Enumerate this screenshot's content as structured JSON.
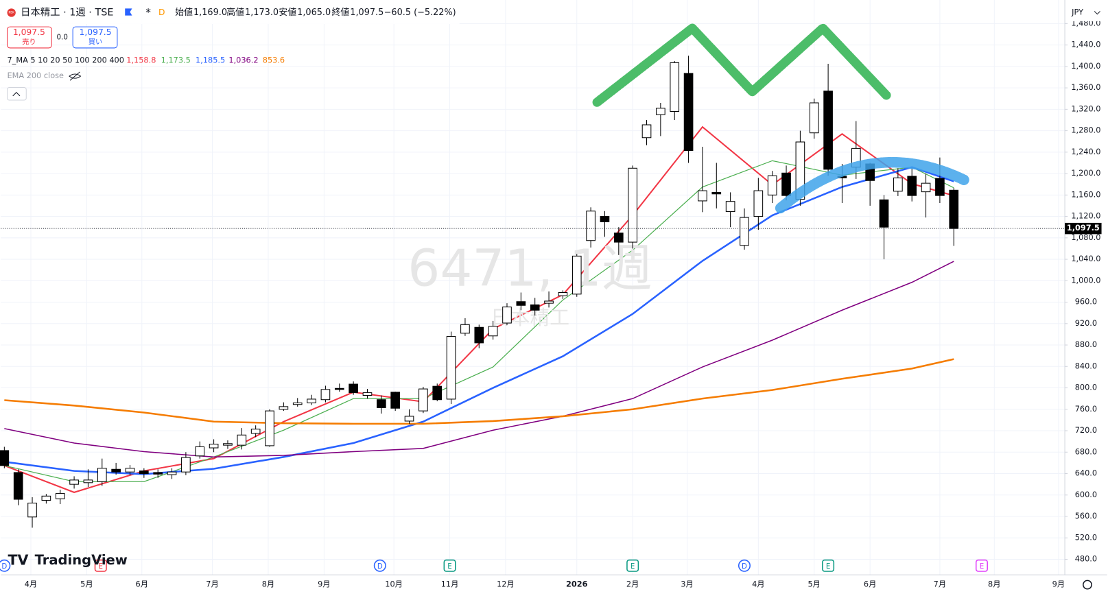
{
  "header": {
    "logo": "NSK",
    "symbol": "日本精工 · 1週 · TSE",
    "interval_badge": "D",
    "ohlc": [
      {
        "label": "始値",
        "value": "1,169.0"
      },
      {
        "label": "高値",
        "value": "1,173.0"
      },
      {
        "label": "安値",
        "value": "1,065.0"
      },
      {
        "label": "終値",
        "value": "1,097.5"
      }
    ],
    "change": "−60.5 (−5.22%)",
    "sell": {
      "price": "1,097.5",
      "label": "売り"
    },
    "spread": "0.0",
    "buy": {
      "price": "1,097.5",
      "label": "買い"
    },
    "ma_label": "7_MA 5 10 20 50 100 200 400",
    "ema_label": "EMA 200 close",
    "watermark": "6471, 1週",
    "watermark_sub": "日本精工",
    "currency": "JPY",
    "brand": "TradingView"
  },
  "chart_data": {
    "type": "candlestick",
    "candles": {
      "open": [
        683,
        642,
        559,
        590,
        593,
        620,
        623,
        625,
        648,
        643,
        645,
        642,
        638,
        643,
        673,
        688,
        693,
        693,
        715,
        692,
        760,
        769,
        772,
        778,
        799,
        807,
        786,
        778,
        792,
        738,
        757,
        803,
        779,
        902,
        913,
        897,
        921,
        961,
        955,
        958,
        972,
        975,
        1075,
        1120,
        1089,
        1072,
        1267,
        1310,
        1316,
        1387,
        1149,
        1165,
        1129,
        1066,
        1120,
        1160,
        1201,
        1152,
        1276,
        1354,
        1195,
        1212,
        1218,
        1151,
        1167,
        1195,
        1166,
        1191,
        1169
      ],
      "high": [
        690,
        648,
        596,
        602,
        610,
        635,
        648,
        668,
        660,
        656,
        650,
        648,
        650,
        680,
        700,
        704,
        702,
        725,
        730,
        760,
        773,
        781,
        787,
        804,
        808,
        812,
        798,
        786,
        793,
        760,
        802,
        808,
        905,
        930,
        918,
        925,
        958,
        978,
        968,
        980,
        982,
        1050,
        1137,
        1130,
        1100,
        1215,
        1300,
        1332,
        1410,
        1420,
        1250,
        1220,
        1165,
        1135,
        1192,
        1205,
        1215,
        1280,
        1340,
        1405,
        1218,
        1298,
        1220,
        1160,
        1210,
        1210,
        1200,
        1230,
        1173
      ],
      "low": [
        650,
        581,
        539,
        584,
        583,
        612,
        615,
        617,
        638,
        637,
        632,
        632,
        630,
        637,
        668,
        680,
        686,
        685,
        708,
        690,
        757,
        765,
        768,
        773,
        793,
        787,
        780,
        752,
        757,
        733,
        753,
        775,
        770,
        897,
        874,
        890,
        917,
        945,
        935,
        950,
        966,
        970,
        1062,
        1082,
        1048,
        1060,
        1253,
        1270,
        1300,
        1220,
        1128,
        1135,
        1100,
        1058,
        1095,
        1145,
        1150,
        1140,
        1265,
        1196,
        1145,
        1190,
        1140,
        1040,
        1158,
        1148,
        1118,
        1145,
        1065
      ],
      "close": [
        655,
        592,
        585,
        598,
        603,
        628,
        628,
        650,
        643,
        650,
        640,
        639,
        643,
        670,
        690,
        695,
        696,
        712,
        723,
        757,
        765,
        772,
        779,
        797,
        797,
        791,
        791,
        763,
        762,
        747,
        798,
        778,
        896,
        918,
        884,
        915,
        951,
        954,
        945,
        962,
        978,
        1046,
        1130,
        1110,
        1072,
        1210,
        1291,
        1322,
        1407,
        1243,
        1168,
        1162,
        1148,
        1118,
        1168,
        1196,
        1159,
        1259,
        1332,
        1208,
        1192,
        1247,
        1187,
        1100,
        1192,
        1159,
        1182,
        1159,
        1097.5
      ]
    },
    "up_color": "#ffffff",
    "down_color": "#000000",
    "series": [
      {
        "color": "#f23645",
        "x": [
          0,
          5,
          10,
          15,
          20,
          25,
          30,
          35,
          40,
          45,
          50,
          55,
          60,
          65,
          68
        ],
        "values": [
          655,
          605,
          645,
          668,
          737,
          792,
          774,
          910,
          974,
          1122,
          1287,
          1179,
          1274,
          1181,
          1158.8
        ],
        "legend_label": "1,158.8"
      },
      {
        "color": "#4caf50",
        "x": [
          0,
          5,
          10,
          15,
          20,
          25,
          30,
          35,
          40,
          45,
          50,
          55,
          60,
          65,
          68
        ],
        "values": [
          655,
          625,
          625,
          671,
          721,
          780,
          780,
          839,
          964,
          1057,
          1175,
          1224,
          1197,
          1212,
          1173.5
        ],
        "legend_label": "1,173.5"
      },
      {
        "color": "#2962ff",
        "x": [
          0,
          5,
          10,
          15,
          20,
          25,
          30,
          35,
          40,
          45,
          50,
          55,
          60,
          65,
          68
        ],
        "values": [
          662,
          645,
          639,
          649,
          671,
          697,
          737,
          800,
          859,
          938,
          1037,
          1122,
          1175,
          1212,
          1185.5
        ],
        "legend_label": "1,185.5"
      },
      {
        "color": "#800080",
        "x": [
          0,
          5,
          10,
          15,
          20,
          25,
          30,
          35,
          40,
          45,
          50,
          55,
          60,
          65,
          68
        ],
        "values": [
          724,
          697,
          681,
          671,
          674,
          681,
          687,
          721,
          747,
          780,
          839,
          889,
          945,
          997,
          1036.2
        ],
        "legend_label": "1,036.2"
      },
      {
        "color": "#f57c00",
        "x": [
          0,
          5,
          10,
          15,
          20,
          25,
          30,
          35,
          40,
          45,
          50,
          55,
          60,
          65,
          68
        ],
        "values": [
          777,
          767,
          754,
          737,
          734,
          733,
          733,
          738,
          747,
          760,
          780,
          796,
          817,
          836,
          853.6
        ],
        "legend_label": "853.6"
      }
    ],
    "last_price": {
      "value": 1097.5,
      "label": "1,097.5"
    },
    "ylim": [
      451,
      1524
    ],
    "yticks": [
      {
        "value": 480,
        "label": "480.0"
      },
      {
        "value": 520,
        "label": "520.0"
      },
      {
        "value": 560,
        "label": "560.0"
      },
      {
        "value": 600,
        "label": "600.0"
      },
      {
        "value": 640,
        "label": "640.0"
      },
      {
        "value": 680,
        "label": "680.0"
      },
      {
        "value": 720,
        "label": "720.0"
      },
      {
        "value": 760,
        "label": "760.0"
      },
      {
        "value": 800,
        "label": "800.0"
      },
      {
        "value": 840,
        "label": "840.0"
      },
      {
        "value": 880,
        "label": "880.0"
      },
      {
        "value": 920,
        "label": "920.0"
      },
      {
        "value": 960,
        "label": "960.0"
      },
      {
        "value": 1000,
        "label": "1,000.0"
      },
      {
        "value": 1040,
        "label": "1,040.0"
      },
      {
        "value": 1080,
        "label": "1,080.0"
      },
      {
        "value": 1120,
        "label": "1,120.0"
      },
      {
        "value": 1160,
        "label": "1,160.0"
      },
      {
        "value": 1200,
        "label": "1,200.0"
      },
      {
        "value": 1240,
        "label": "1,240.0"
      },
      {
        "value": 1280,
        "label": "1,280.0"
      },
      {
        "value": 1320,
        "label": "1,320.0"
      },
      {
        "value": 1360,
        "label": "1,360.0"
      },
      {
        "value": 1400,
        "label": "1,400.0"
      },
      {
        "value": 1440,
        "label": "1,440.0"
      },
      {
        "value": 1480,
        "label": "1,480.0"
      }
    ],
    "xlim": [
      -0.25,
      75.95
    ],
    "xticks": [
      {
        "value": 1.9,
        "label": "4月"
      },
      {
        "value": 5.9,
        "label": "5月"
      },
      {
        "value": 9.85,
        "label": "6月"
      },
      {
        "value": 14.9,
        "label": "7月"
      },
      {
        "value": 18.9,
        "label": "8月"
      },
      {
        "value": 22.9,
        "label": "9月"
      },
      {
        "value": 27.9,
        "label": "10月"
      },
      {
        "value": 31.9,
        "label": "11月"
      },
      {
        "value": 35.9,
        "label": "12月"
      },
      {
        "value": 41,
        "label": "2026"
      },
      {
        "value": 45,
        "label": "2月"
      },
      {
        "value": 48.9,
        "label": "3月"
      },
      {
        "value": 54,
        "label": "4月"
      },
      {
        "value": 58,
        "label": "5月"
      },
      {
        "value": 62,
        "label": "6月"
      },
      {
        "value": 67,
        "label": "7月"
      },
      {
        "value": 70.9,
        "label": "8月"
      },
      {
        "value": 75.5,
        "label": "9月"
      }
    ],
    "events": [
      {
        "x": 0,
        "label": "D",
        "color": "#2962ff"
      },
      {
        "x": 6.9,
        "label": "E",
        "color": "#f23645"
      },
      {
        "x": 26.9,
        "label": "D",
        "color": "#2962ff"
      },
      {
        "x": 31.9,
        "label": "E",
        "color": "#089981"
      },
      {
        "x": 45,
        "label": "E",
        "color": "#089981"
      },
      {
        "x": 53,
        "label": "D",
        "color": "#2962ff"
      },
      {
        "x": 59,
        "label": "E",
        "color": "#089981"
      },
      {
        "x": 70,
        "label": "E",
        "color": "#e040fb"
      }
    ]
  }
}
